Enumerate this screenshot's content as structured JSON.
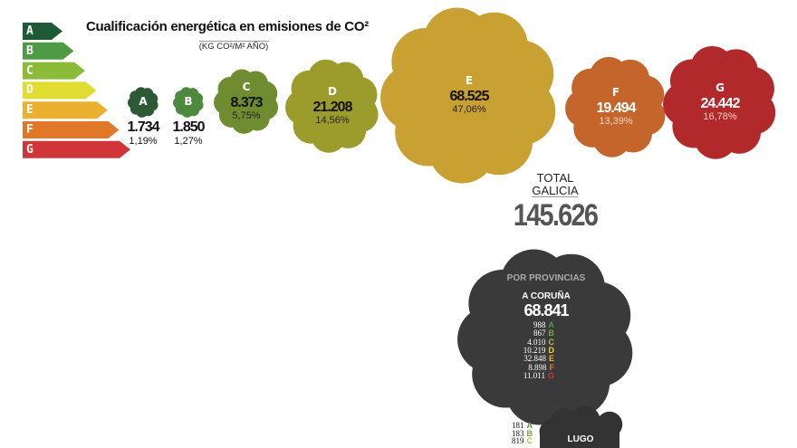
{
  "chart_data": {
    "type": "bubble",
    "title": "Cualificación energética en emisiones de CO²",
    "subtitle": "(KG CO²/M² AÑO)",
    "categories": [
      "A",
      "B",
      "C",
      "D",
      "E",
      "F",
      "G"
    ],
    "values": [
      1734,
      1850,
      8373,
      21208,
      68525,
      19494,
      24442
    ],
    "value_labels": [
      "1.734",
      "1.850",
      "8.373",
      "21.208",
      "68.525",
      "19.494",
      "24.442"
    ],
    "percent_labels": [
      "1,19%",
      "1,27%",
      "5,75%",
      "14,56%",
      "47,06%",
      "13,39%",
      "16,78%"
    ],
    "colors": [
      "#2c5a34",
      "#4e8a3e",
      "#6f8c30",
      "#9c9c2c",
      "#c9a132",
      "#c4652c",
      "#b2292c"
    ],
    "scale_colors": [
      "#1f5a36",
      "#4f9a44",
      "#8cbb3a",
      "#e0dc30",
      "#ecb030",
      "#e07828",
      "#d0353a"
    ],
    "total": {
      "label_line1": "TOTAL",
      "label_line2": "GALICIA",
      "value": "145.626"
    }
  },
  "provinces": {
    "heading": "POR PROVINCIAS",
    "items": [
      {
        "name": "A CORUÑA",
        "total": "68.841",
        "rows": [
          [
            "988",
            "A"
          ],
          [
            "867",
            "B"
          ],
          [
            "4.010",
            "C"
          ],
          [
            "10.219",
            "D"
          ],
          [
            "32.848",
            "E"
          ],
          [
            "8.898",
            "F"
          ],
          [
            "11.011",
            "G"
          ]
        ]
      },
      {
        "name": "LUGO",
        "total": "",
        "rows": [
          [
            "181",
            "A"
          ],
          [
            "183",
            "B"
          ],
          [
            "819",
            "C"
          ]
        ]
      }
    ]
  }
}
